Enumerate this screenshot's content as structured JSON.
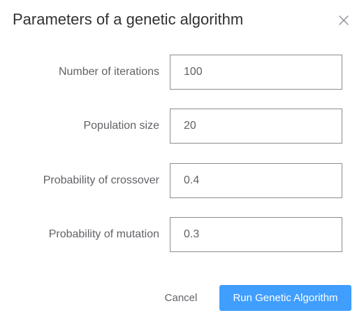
{
  "dialog": {
    "title": "Parameters of a genetic algorithm",
    "close_icon": "close-icon"
  },
  "fields": [
    {
      "label": "Number of iterations",
      "value": "100"
    },
    {
      "label": "Population size",
      "value": "20"
    },
    {
      "label": "Probability of crossover",
      "value": "0.4"
    },
    {
      "label": "Probability of mutation",
      "value": "0.3"
    }
  ],
  "footer": {
    "cancel_label": "Cancel",
    "run_label": "Run Genetic Algorithm"
  },
  "colors": {
    "primary": "#409eff",
    "title_text": "#303133",
    "label_text": "#606266",
    "input_border": "#8c8c8c"
  }
}
